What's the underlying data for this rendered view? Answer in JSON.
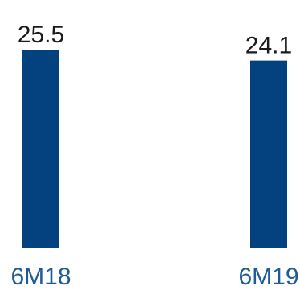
{
  "chart_data": {
    "type": "bar",
    "categories": [
      "6M18",
      "6M19"
    ],
    "values": [
      25.5,
      24.1
    ],
    "data_labels": [
      "25.5",
      "24.1"
    ],
    "title": "",
    "xlabel": "",
    "ylabel": "",
    "ylim": [
      0,
      25.5
    ],
    "grid": false,
    "bar_color": "#03427f",
    "label_color": "#1f5a99"
  }
}
